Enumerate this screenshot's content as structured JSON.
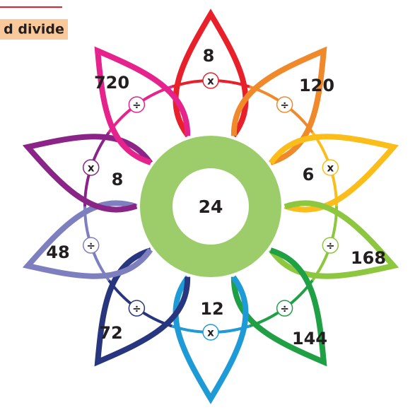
{
  "header": {
    "title": "d divide"
  },
  "center": {
    "label": "24"
  },
  "petals": [
    {
      "number": "8",
      "operator": "x",
      "color": "#e8202a"
    },
    {
      "number": "120",
      "operator": "÷",
      "color": "#f0892a"
    },
    {
      "number": "6",
      "operator": "x",
      "color": "#fbbd1a"
    },
    {
      "number": "168",
      "operator": "÷",
      "color": "#8dc63f"
    },
    {
      "number": "144",
      "operator": "÷",
      "color": "#1fa045"
    },
    {
      "number": "12",
      "operator": "x",
      "color": "#1e9ad6"
    },
    {
      "number": "72",
      "operator": "÷",
      "color": "#27367e"
    },
    {
      "number": "48",
      "operator": "÷",
      "color": "#7e7fbf"
    },
    {
      "number": "8",
      "operator": "x",
      "color": "#8a2587"
    },
    {
      "number": "720",
      "operator": "÷",
      "color": "#e6228d"
    }
  ]
}
